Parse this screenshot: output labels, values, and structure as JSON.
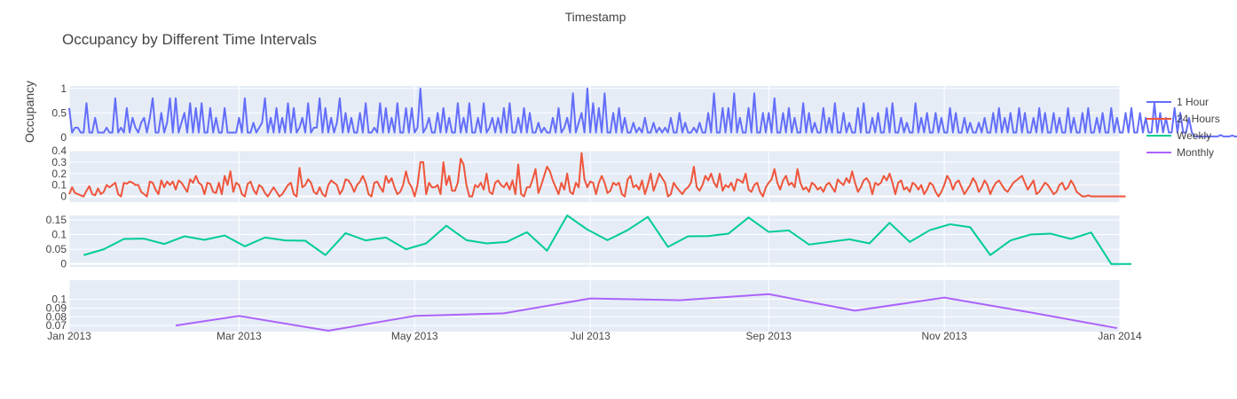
{
  "chart_data": {
    "type": "line",
    "title": "Occupancy by Different Time Intervals",
    "xlabel": "Timestamp",
    "ylabel": "Occupancy",
    "grid": true,
    "legend_position": "top-right",
    "x_range": [
      "2013-01-01",
      "2014-01-01"
    ],
    "x_ticks": [
      {
        "date": "2013-01-01",
        "label": "Jan 2013"
      },
      {
        "date": "2013-03-01",
        "label": "Mar 2013"
      },
      {
        "date": "2013-05-01",
        "label": "May 2013"
      },
      {
        "date": "2013-07-01",
        "label": "Jul 2013"
      },
      {
        "date": "2013-09-01",
        "label": "Sep 2013"
      },
      {
        "date": "2013-11-01",
        "label": "Nov 2013"
      },
      {
        "date": "2014-01-01",
        "label": "Jan 2014"
      }
    ],
    "series": [
      {
        "name": "1 Hour",
        "color": "#636efa",
        "ylim": [
          0,
          1.05
        ],
        "yticks": [
          0,
          0.5,
          1
        ],
        "ytick_labels": [
          "0",
          "0.5",
          "1"
        ],
        "x_start": "2013-01-01",
        "x_step_days": 1,
        "values": [
          0.6,
          0.1,
          0.2,
          0.2,
          0.1,
          0.1,
          0.7,
          0.1,
          0.1,
          0.4,
          0.1,
          0.1,
          0.1,
          0.2,
          0.1,
          0.1,
          0.8,
          0.1,
          0.2,
          0.1,
          0.6,
          0.1,
          0.4,
          0.2,
          0.1,
          0.3,
          0.4,
          0.1,
          0.4,
          0.8,
          0.1,
          0.1,
          0.5,
          0.1,
          0.3,
          0.8,
          0.1,
          0.8,
          0.1,
          0.3,
          0.5,
          0.1,
          0.7,
          0.1,
          0.6,
          0.1,
          0.7,
          0.1,
          0.1,
          0.6,
          0.1,
          0.4,
          0.1,
          0.1,
          0.6,
          0.1,
          0.1,
          0.1,
          0.1,
          0.4,
          0.1,
          0.8,
          0.1,
          0.1,
          0.3,
          0.1,
          0.2,
          0.3,
          0.8,
          0.1,
          0.4,
          0.1,
          0.6,
          0.1,
          0.4,
          0.1,
          0.7,
          0.1,
          0.6,
          0.1,
          0.2,
          0.4,
          0.1,
          0.7,
          0.1,
          0.2,
          0.2,
          0.8,
          0.1,
          0.6,
          0.1,
          0.4,
          0.1,
          0.3,
          0.8,
          0.1,
          0.5,
          0.1,
          0.4,
          0.1,
          0.1,
          0.5,
          0.1,
          0.7,
          0.1,
          0.1,
          0.2,
          0.1,
          0.7,
          0.1,
          0.6,
          0.1,
          0.4,
          0.1,
          0.7,
          0.1,
          0.1,
          0.6,
          0.1,
          0.6,
          0.1,
          0.2,
          1.0,
          0.1,
          0.2,
          0.4,
          0.1,
          0.1,
          0.5,
          0.1,
          0.6,
          0.1,
          0.4,
          0.1,
          0.1,
          0.7,
          0.1,
          0.4,
          0.1,
          0.7,
          0.1,
          0.1,
          0.4,
          0.1,
          0.7,
          0.1,
          0.2,
          0.4,
          0.1,
          0.4,
          0.1,
          0.6,
          0.1,
          0.7,
          0.1,
          0.1,
          0.4,
          0.1,
          0.6,
          0.1,
          0.5,
          0.1,
          0.1,
          0.3,
          0.1,
          0.2,
          0.1,
          0.1,
          0.4,
          0.1,
          0.6,
          0.1,
          0.2,
          0.4,
          0.1,
          0.9,
          0.1,
          0.3,
          0.5,
          0.1,
          1.0,
          0.1,
          0.7,
          0.1,
          0.6,
          0.1,
          0.9,
          0.1,
          0.1,
          0.5,
          0.1,
          0.6,
          0.1,
          0.4,
          0.1,
          0.1,
          0.3,
          0.1,
          0.2,
          0.1,
          0.4,
          0.1,
          0.1,
          0.3,
          0.1,
          0.2,
          0.1,
          0.2,
          0.1,
          0.4,
          0.1,
          0.1,
          0.5,
          0.1,
          0.3,
          0.1,
          0.1,
          0.2,
          0.1,
          0.3,
          0.1,
          0.1,
          0.5,
          0.1,
          0.9,
          0.1,
          0.1,
          0.6,
          0.1,
          0.6,
          0.1,
          0.9,
          0.1,
          0.4,
          0.1,
          0.1,
          0.6,
          0.1,
          0.9,
          0.1,
          0.1,
          0.5,
          0.1,
          0.5,
          0.1,
          0.8,
          0.1,
          0.1,
          0.5,
          0.1,
          0.6,
          0.1,
          0.4,
          0.1,
          0.1,
          0.7,
          0.1,
          0.5,
          0.1,
          0.3,
          0.1,
          0.1,
          0.6,
          0.1,
          0.4,
          0.1,
          0.7,
          0.1,
          0.1,
          0.5,
          0.1,
          0.3,
          0.1,
          0.1,
          0.6,
          0.1,
          0.7,
          0.1,
          0.1,
          0.4,
          0.1,
          0.5,
          0.1,
          0.1,
          0.6,
          0.1,
          0.7,
          0.1,
          0.1,
          0.4,
          0.1,
          0.3,
          0.1,
          0.1,
          0.7,
          0.1,
          0.4,
          0.1,
          0.5,
          0.1,
          0.1,
          0.5,
          0.1,
          0.4,
          0.1,
          0.1,
          0.6,
          0.1,
          0.5,
          0.1,
          0.1,
          0.4,
          0.1,
          0.3,
          0.1,
          0.1,
          0.3,
          0.1,
          0.4,
          0.1,
          0.1,
          0.5,
          0.1,
          0.6,
          0.1,
          0.4,
          0.1,
          0.5,
          0.1,
          0.1,
          0.6,
          0.1,
          0.5,
          0.1,
          0.1,
          0.4,
          0.1,
          0.6,
          0.1,
          0.5,
          0.1,
          0.1,
          0.5,
          0.1,
          0.4,
          0.1,
          0.1,
          0.6,
          0.1,
          0.4,
          0.1,
          0.1,
          0.5,
          0.1,
          0.6,
          0.1,
          0.1,
          0.4,
          0.1,
          0.5,
          0.1,
          0.1,
          0.6,
          0.1,
          0.4,
          0.1,
          0.1,
          0.5,
          0.1,
          0.6,
          0.1,
          0.1,
          0.5,
          0.1,
          0.4,
          0.1,
          0.1,
          0.7,
          0.1,
          0.5,
          0.1,
          0.4,
          0.1,
          0.1,
          0.6,
          0.1,
          0.5,
          0.1,
          0.1,
          0.4,
          0.1,
          0.02,
          0.02,
          0.02,
          0.02,
          0.02,
          0.02,
          0.02,
          0.02,
          0.02,
          0.05,
          0.02,
          0.02,
          0.02,
          0.04,
          0.02,
          0.02
        ]
      },
      {
        "name": "24 Hours",
        "color": "#ef553b",
        "ylim": [
          -0.05,
          0.4
        ],
        "yticks": [
          0,
          0.1,
          0.2,
          0.3,
          0.4
        ],
        "ytick_labels": [
          "0",
          "0.1",
          "0.2",
          "0.3",
          "0.4"
        ],
        "x_start": "2013-01-01",
        "x_step_days": 1,
        "values": [
          0.02,
          0.08,
          0.03,
          0.02,
          0.01,
          0.0,
          0.05,
          0.09,
          0.02,
          0.01,
          0.07,
          0.02,
          0.04,
          0.1,
          0.08,
          0.1,
          0.12,
          0.02,
          0.0,
          0.12,
          0.11,
          0.13,
          0.12,
          0.1,
          0.1,
          0.04,
          0.02,
          0.0,
          0.13,
          0.12,
          0.06,
          0.02,
          0.14,
          0.08,
          0.13,
          0.1,
          0.13,
          0.06,
          0.14,
          0.12,
          0.08,
          0.04,
          0.15,
          0.12,
          0.18,
          0.12,
          0.1,
          0.02,
          0.12,
          0.11,
          0.04,
          0.03,
          0.12,
          0.02,
          0.18,
          0.1,
          0.22,
          0.04,
          0.12,
          0.1,
          0.02,
          0.0,
          0.11,
          0.13,
          0.06,
          0.02,
          0.1,
          0.08,
          0.03,
          0.0,
          0.04,
          0.08,
          0.04,
          0.0,
          0.02,
          0.06,
          0.1,
          0.12,
          0.02,
          0.0,
          0.25,
          0.08,
          0.1,
          0.15,
          0.12,
          0.04,
          0.02,
          0.08,
          0.02,
          0.0,
          0.1,
          0.14,
          0.12,
          0.1,
          0.02,
          0.06,
          0.15,
          0.14,
          0.1,
          0.04,
          0.1,
          0.13,
          0.18,
          0.12,
          0.02,
          0.0,
          0.12,
          0.13,
          0.08,
          0.04,
          0.18,
          0.12,
          0.16,
          0.08,
          0.02,
          0.04,
          0.1,
          0.22,
          0.12,
          0.08,
          0.0,
          0.1,
          0.3,
          0.3,
          0.02,
          0.12,
          0.08,
          0.08,
          0.1,
          0.02,
          0.3,
          0.1,
          0.18,
          0.05,
          0.05,
          0.12,
          0.33,
          0.28,
          0.1,
          0.0,
          0.0,
          0.1,
          0.08,
          0.12,
          0.06,
          0.2,
          0.04,
          0.02,
          0.12,
          0.14,
          0.1,
          0.08,
          0.12,
          0.06,
          0.14,
          0.02,
          0.28,
          0.02,
          0.0,
          0.08,
          0.08,
          0.15,
          0.24,
          0.03,
          0.1,
          0.18,
          0.26,
          0.22,
          0.14,
          0.08,
          0.02,
          0.12,
          0.06,
          0.2,
          0.04,
          0.02,
          0.12,
          0.08,
          0.38,
          0.15,
          0.08,
          0.13,
          0.12,
          0.02,
          0.12,
          0.18,
          0.12,
          0.03,
          0.05,
          0.12,
          0.1,
          0.12,
          0.02,
          0.0,
          0.15,
          0.18,
          0.08,
          0.1,
          0.06,
          0.14,
          0.02,
          0.1,
          0.2,
          0.05,
          0.12,
          0.2,
          0.16,
          0.12,
          0.0,
          0.02,
          0.12,
          0.08,
          0.05,
          0.02,
          0.06,
          0.08,
          0.12,
          0.26,
          0.08,
          0.05,
          0.1,
          0.18,
          0.14,
          0.2,
          0.12,
          0.08,
          0.2,
          0.05,
          0.1,
          0.08,
          0.12,
          0.05,
          0.15,
          0.14,
          0.12,
          0.2,
          0.06,
          0.04,
          0.1,
          0.12,
          0.04,
          0.0,
          0.08,
          0.12,
          0.15,
          0.24,
          0.12,
          0.06,
          0.14,
          0.18,
          0.1,
          0.12,
          0.08,
          0.24,
          0.12,
          0.06,
          0.08,
          0.04,
          0.12,
          0.1,
          0.06,
          0.08,
          0.04,
          0.1,
          0.12,
          0.08,
          0.04,
          0.15,
          0.12,
          0.1,
          0.16,
          0.12,
          0.22,
          0.12,
          0.04,
          0.08,
          0.14,
          0.16,
          0.12,
          0.02,
          0.12,
          0.1,
          0.12,
          0.18,
          0.14,
          0.2,
          0.12,
          0.02,
          0.12,
          0.14,
          0.06,
          0.08,
          0.04,
          0.12,
          0.1,
          0.06,
          0.1,
          0.02,
          0.06,
          0.12,
          0.1,
          0.04,
          0.0,
          0.04,
          0.1,
          0.18,
          0.14,
          0.06,
          0.12,
          0.14,
          0.08,
          0.02,
          0.06,
          0.1,
          0.16,
          0.12,
          0.04,
          0.08,
          0.14,
          0.1,
          0.02,
          0.08,
          0.12,
          0.14,
          0.1,
          0.06,
          0.04,
          0.08,
          0.12,
          0.14,
          0.16,
          0.18,
          0.12,
          0.06,
          0.1,
          0.14,
          0.02,
          0.04,
          0.08,
          0.12,
          0.1,
          0.06,
          0.02,
          0.04,
          0.1,
          0.12,
          0.06,
          0.08,
          0.14,
          0.1,
          0.04,
          0.02,
          0.0,
          0.0,
          0.01,
          0.0,
          0.0,
          0.0,
          0.0,
          0.0,
          0.0,
          0.0,
          0.0,
          0.0,
          0.0,
          0.0,
          0.0,
          0.0
        ]
      },
      {
        "name": "Weekly",
        "color": "#00cc96",
        "ylim": [
          -0.01,
          0.165
        ],
        "yticks": [
          0,
          0.05,
          0.1,
          0.15
        ],
        "ytick_labels": [
          "0",
          "0.05",
          "0.1",
          "0.15"
        ],
        "x_start": "2013-01-06",
        "x_step_days": 7,
        "values": [
          0.03,
          0.05,
          0.085,
          0.086,
          0.068,
          0.094,
          0.082,
          0.097,
          0.06,
          0.09,
          0.08,
          0.079,
          0.03,
          0.105,
          0.08,
          0.09,
          0.05,
          0.07,
          0.13,
          0.081,
          0.07,
          0.075,
          0.108,
          0.045,
          0.165,
          0.117,
          0.081,
          0.115,
          0.16,
          0.058,
          0.094,
          0.095,
          0.103,
          0.158,
          0.109,
          0.114,
          0.066,
          0.075,
          0.084,
          0.07,
          0.14,
          0.075,
          0.115,
          0.135,
          0.125,
          0.03,
          0.08,
          0.1,
          0.103,
          0.085,
          0.107,
          0.0,
          0.0
        ]
      },
      {
        "name": "Monthly",
        "color": "#ab63fa",
        "ylim": [
          0.063,
          0.122
        ],
        "yticks": [
          0.07,
          0.08,
          0.09,
          0.1
        ],
        "ytick_labels": [
          "0.07",
          "0.08",
          "0.09",
          "0.1"
        ],
        "points": [
          {
            "x": "2013-02-07",
            "y": 0.07
          },
          {
            "x": "2013-03-01",
            "y": 0.081
          },
          {
            "x": "2013-04-01",
            "y": 0.064
          },
          {
            "x": "2013-05-01",
            "y": 0.081
          },
          {
            "x": "2013-06-01",
            "y": 0.084
          },
          {
            "x": "2013-07-01",
            "y": 0.101
          },
          {
            "x": "2013-08-01",
            "y": 0.099
          },
          {
            "x": "2013-09-01",
            "y": 0.106
          },
          {
            "x": "2013-10-01",
            "y": 0.087
          },
          {
            "x": "2013-11-01",
            "y": 0.102
          },
          {
            "x": "2013-12-01",
            "y": 0.085
          },
          {
            "x": "2013-12-31",
            "y": 0.067
          }
        ]
      }
    ]
  }
}
